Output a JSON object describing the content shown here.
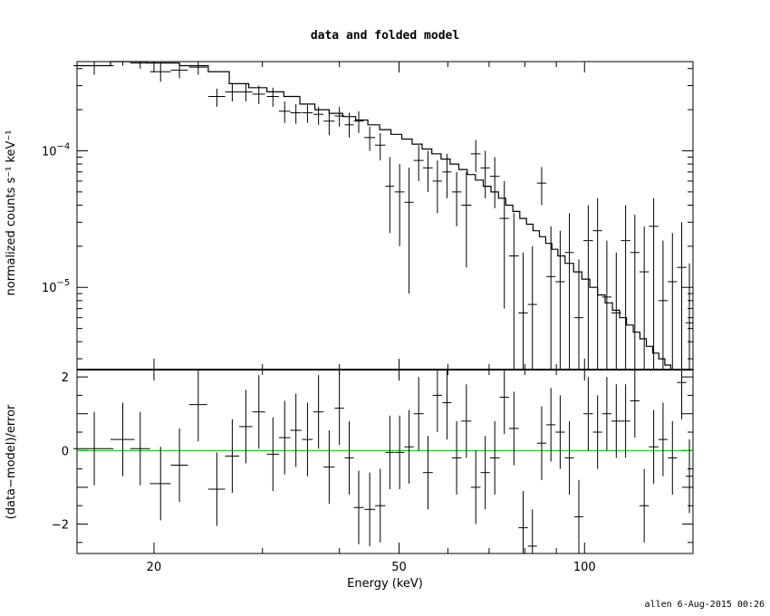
{
  "title": "data and folded model",
  "footer": "allen  6-Aug-2015 00:26",
  "chart_data": [
    {
      "type": "line",
      "panel": "top",
      "xscale": "log",
      "yscale": "log",
      "xlim": [
        15,
        150
      ],
      "ylim": [
        2.5e-06,
        0.00045
      ],
      "ylabel": "normalized counts s⁻¹ keV⁻¹",
      "yticks": [
        {
          "value": 0.0001,
          "base": "10",
          "exp": "−4"
        },
        {
          "value": 1e-05,
          "base": "10",
          "exp": "−5"
        }
      ],
      "series": [
        {
          "role": "data",
          "x": [
            16.0,
            17.8,
            19.0,
            20.5,
            22.0,
            23.6,
            25.3,
            26.8,
            28.2,
            29.6,
            31.2,
            32.6,
            34.0,
            35.5,
            37.0,
            38.5,
            40.0,
            41.5,
            43.0,
            44.8,
            46.6,
            48.3,
            50.1,
            51.9,
            53.8,
            55.7,
            57.7,
            59.8,
            62.0,
            64.3,
            66.6,
            69.0,
            71.5,
            74.1,
            76.8,
            79.5,
            82.3,
            85.2,
            88.2,
            91.3,
            94.5,
            97.9,
            101.4,
            105.0,
            108.7,
            112.6,
            116.6,
            120.7,
            125.0,
            129.5,
            134.1,
            138.9,
            143.8,
            148.0
          ],
          "xerr": [
            1.2,
            0.8,
            0.7,
            0.8,
            0.7,
            0.8,
            0.8,
            0.7,
            0.7,
            0.7,
            0.7,
            0.7,
            0.7,
            0.7,
            0.7,
            0.8,
            0.7,
            0.7,
            0.8,
            0.9,
            0.9,
            0.8,
            0.9,
            0.9,
            1.0,
            1.0,
            1.0,
            1.0,
            1.1,
            1.2,
            1.2,
            1.2,
            1.3,
            1.3,
            1.4,
            1.4,
            1.4,
            1.5,
            1.5,
            1.6,
            1.6,
            1.7,
            1.8,
            1.8,
            1.9,
            2.0,
            2.0,
            2.1,
            2.2,
            2.3,
            2.3,
            2.4,
            2.5,
            2.0
          ],
          "y": [
            0.00042,
            0.00046,
            0.00044,
            0.00038,
            0.00039,
            0.00041,
            0.00025,
            0.00027,
            0.00027,
            0.00026,
            0.00025,
            0.000195,
            0.00019,
            0.00019,
            0.000185,
            0.000165,
            0.00018,
            0.000155,
            0.000165,
            0.000125,
            0.00011,
            5.5e-05,
            5e-05,
            4.2e-05,
            8.5e-05,
            7.5e-05,
            6e-05,
            7e-05,
            5e-05,
            4e-05,
            9.5e-05,
            7.5e-05,
            6.5e-05,
            3.2e-05,
            1.7e-05,
            6.5e-06,
            7.5e-06,
            5.8e-05,
            1.2e-05,
            1.1e-05,
            1.8e-05,
            6e-06,
            2.2e-05,
            2.6e-05,
            8.5e-06,
            6.5e-06,
            2.2e-05,
            1.8e-05,
            1.3e-05,
            2.8e-05,
            8e-06,
            1.1e-05,
            1.4e-05,
            5.5e-06
          ],
          "ylo": [
            0.00036,
            0.00042,
            0.0004,
            0.00032,
            0.00034,
            0.00036,
            0.00021,
            0.00023,
            0.00023,
            0.00022,
            0.00021,
            0.00016,
            0.000158,
            0.00016,
            0.000155,
            0.00013,
            0.00015,
            0.000125,
            0.000135,
            0.0001,
            8.5e-05,
            2.5e-05,
            2e-05,
            9e-06,
            6e-05,
            5e-05,
            3.5e-05,
            4.5e-05,
            2.8e-05,
            1.4e-05,
            7e-05,
            4.5e-05,
            3.8e-05,
            7e-06,
            2.5e-06,
            2.5e-06,
            2.5e-06,
            4e-05,
            2.5e-06,
            2.5e-06,
            2.5e-06,
            2.5e-06,
            2.5e-06,
            2.5e-06,
            2.5e-06,
            2.5e-06,
            2.5e-06,
            2.5e-06,
            2.5e-06,
            2.5e-06,
            2.5e-06,
            2.5e-06,
            2.5e-06,
            2.5e-06
          ],
          "yhi": [
            0.00045,
            0.00045,
            0.00045,
            0.00044,
            0.00044,
            0.00045,
            0.000285,
            0.00031,
            0.00031,
            0.0003,
            0.00029,
            0.00023,
            0.00022,
            0.00022,
            0.00021,
            0.0002,
            0.00021,
            0.00019,
            0.000195,
            0.00015,
            0.000135,
            9e-05,
            8e-05,
            7.5e-05,
            0.00011,
            0.0001,
            8.5e-05,
            9.5e-05,
            7e-05,
            7e-05,
            0.00012,
            0.0001,
            9e-05,
            6e-05,
            3.5e-05,
            1.8e-05,
            2e-05,
            7.6e-05,
            2.8e-05,
            2.6e-05,
            3.5e-05,
            1.6e-05,
            4e-05,
            4.5e-05,
            2.2e-05,
            1.8e-05,
            4e-05,
            3.4e-05,
            2.8e-05,
            4.5e-05,
            2.2e-05,
            2.5e-05,
            3e-05,
            1.5e-05
          ]
        },
        {
          "role": "model",
          "x": [
            15,
            17.0,
            19.5,
            22.0,
            24.5,
            26.5,
            28.5,
            30.5,
            32.5,
            34.5,
            36.5,
            38.5,
            40.5,
            42.5,
            44.5,
            46.5,
            48.5,
            50.5,
            52.5,
            54.5,
            56.5,
            58.5,
            60.5,
            62.5,
            64.5,
            66.5,
            68.5,
            70.5,
            72.5,
            74.5,
            76.5,
            78.5,
            80.5,
            82.5,
            84.5,
            86.5,
            88.5,
            90.5,
            93.0,
            96.0,
            99.0,
            102.0,
            105.0,
            108.0,
            111.0,
            114.0,
            117.0,
            120.0,
            123.0,
            126.0,
            129.0,
            132.0,
            135.0,
            138.0,
            141.0,
            144.0,
            147.0,
            150
          ],
          "y": [
            0.00042,
            0.00045,
            0.00044,
            0.00042,
            0.00038,
            0.00031,
            0.00029,
            0.00027,
            0.00025,
            0.00022,
            0.0002,
            0.000188,
            0.000178,
            0.000168,
            0.000155,
            0.000143,
            0.000132,
            0.000122,
            0.000112,
            0.000103,
            9.5e-05,
            8.7e-05,
            8e-05,
            7.3e-05,
            6.7e-05,
            6.1e-05,
            5.5e-05,
            5e-05,
            4.5e-05,
            4e-05,
            3.6e-05,
            3.2e-05,
            2.9e-05,
            2.6e-05,
            2.35e-05,
            2.1e-05,
            1.9e-05,
            1.7e-05,
            1.5e-05,
            1.3e-05,
            1.15e-05,
            1e-05,
            8.8e-06,
            7.7e-06,
            6.8e-06,
            6e-06,
            5.3e-06,
            4.7e-06,
            4.2e-06,
            3.7e-06,
            3.3e-06,
            3e-06,
            2.7e-06,
            2.5e-06,
            2.5e-06,
            2.5e-06,
            2.5e-06,
            2.5e-06
          ]
        }
      ]
    },
    {
      "type": "scatter",
      "panel": "bottom",
      "xscale": "log",
      "xlim": [
        15,
        150
      ],
      "ylim": [
        -2.8,
        2.2
      ],
      "xlabel": "Energy (keV)",
      "ylabel": "(data−model)/error",
      "xticks": [
        {
          "value": 20,
          "label": "20"
        },
        {
          "value": 50,
          "label": "50"
        },
        {
          "value": 100,
          "label": "100"
        }
      ],
      "yticks": [
        {
          "value": 2,
          "label": "2"
        },
        {
          "value": 0,
          "label": "0"
        },
        {
          "value": -2,
          "label": "−2"
        }
      ],
      "zero_line_color": "#00cc00",
      "series": [
        {
          "role": "residuals",
          "x": [
            16.0,
            17.8,
            19.0,
            20.5,
            22.0,
            23.6,
            25.3,
            26.8,
            28.2,
            29.6,
            31.2,
            32.6,
            34.0,
            35.5,
            37.0,
            38.5,
            40.0,
            41.5,
            43.0,
            44.8,
            46.6,
            48.3,
            50.1,
            51.9,
            53.8,
            55.7,
            57.7,
            59.8,
            62.0,
            64.3,
            66.6,
            69.0,
            71.5,
            74.1,
            76.8,
            79.5,
            82.3,
            85.2,
            88.2,
            91.3,
            94.5,
            97.9,
            101.4,
            105.0,
            108.7,
            112.6,
            116.6,
            120.7,
            125.0,
            129.5,
            134.1,
            138.9,
            143.8,
            148.0
          ],
          "xerr": [
            1.2,
            0.8,
            0.7,
            0.8,
            0.7,
            0.8,
            0.8,
            0.7,
            0.7,
            0.7,
            0.7,
            0.7,
            0.7,
            0.7,
            0.7,
            0.8,
            0.7,
            0.7,
            0.8,
            0.9,
            0.9,
            0.8,
            0.9,
            0.9,
            1.0,
            1.0,
            1.0,
            1.0,
            1.1,
            1.2,
            1.2,
            1.2,
            1.3,
            1.3,
            1.4,
            1.4,
            1.4,
            1.5,
            1.5,
            1.6,
            1.6,
            1.7,
            1.8,
            1.8,
            1.9,
            2.0,
            2.0,
            2.1,
            2.2,
            2.3,
            2.3,
            2.4,
            2.5,
            2.0
          ],
          "y": [
            0.05,
            0.3,
            0.05,
            -0.9,
            -0.4,
            1.25,
            -1.05,
            -0.15,
            0.65,
            1.05,
            -0.1,
            0.35,
            0.55,
            0.3,
            1.05,
            -0.45,
            1.15,
            -0.2,
            -1.55,
            -1.6,
            -1.5,
            -0.05,
            -0.05,
            0.1,
            1.0,
            -0.6,
            1.5,
            1.3,
            -0.2,
            0.8,
            -1.0,
            -0.6,
            -0.2,
            1.45,
            0.6,
            -2.1,
            -2.6,
            0.2,
            0.7,
            0.5,
            -0.2,
            -1.8,
            1.0,
            0.5,
            1.0,
            0.8,
            0.8,
            1.35,
            -1.5,
            0.1,
            0.3,
            -0.2,
            1.85,
            -0.7
          ],
          "yerr": [
            1.0,
            1.0,
            1.0,
            1.0,
            1.0,
            1.0,
            1.0,
            1.0,
            1.0,
            1.0,
            1.0,
            1.0,
            1.0,
            1.0,
            1.0,
            1.0,
            1.0,
            1.0,
            1.0,
            1.0,
            1.0,
            1.0,
            1.0,
            1.0,
            1.0,
            1.0,
            1.0,
            1.0,
            1.0,
            1.0,
            1.0,
            1.0,
            1.0,
            1.0,
            1.0,
            1.0,
            1.0,
            1.0,
            1.0,
            1.0,
            1.0,
            1.0,
            1.0,
            1.0,
            1.0,
            1.0,
            1.0,
            1.0,
            1.0,
            1.0,
            1.0,
            1.0,
            1.0,
            1.0
          ]
        }
      ]
    }
  ]
}
